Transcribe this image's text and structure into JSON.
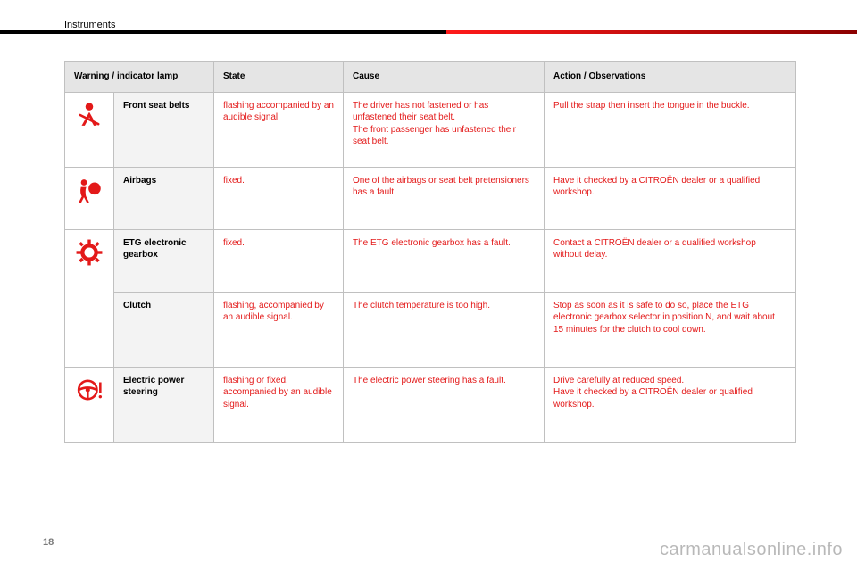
{
  "heading": "Instruments",
  "page_number": "18",
  "watermark": "carmanualsonline.info",
  "colors": {
    "red": "#e31919",
    "header_bg": "#e5e5e5",
    "name_bg": "#f3f3f3",
    "border": "#c0c0c0",
    "bar_red_start": "#ff1a1a",
    "bar_red_end": "#8b0000"
  },
  "headers": {
    "lamp": "Warning / indicator lamp",
    "state": "State",
    "cause": "Cause",
    "action": "Action / Observations"
  },
  "rows": [
    {
      "icon": "seatbelt",
      "name": "Front seat belts",
      "state": "flashing accompanied by an audible signal.",
      "cause": "The driver has not fastened or has unfastened their seat belt.\nThe front passenger has unfastened their seat belt.",
      "action": "Pull the strap then insert the tongue in the buckle."
    },
    {
      "icon": "airbag",
      "name": "Airbags",
      "state": "fixed.",
      "cause": "One of the airbags or seat belt pretensioners has a fault.",
      "action": "Have it checked by a CITROËN dealer or a qualified workshop."
    },
    {
      "icon": "gear",
      "name": "ETG electronic gearbox",
      "state": "fixed.",
      "cause": "The ETG electronic gearbox has a fault.",
      "action": "Contact a CITROËN dealer or a qualified workshop without delay."
    },
    {
      "icon": "",
      "name": "Clutch",
      "state": "flashing, accompanied by an audible signal.",
      "cause": "The clutch temperature is too high.",
      "action": "Stop as soon as it is safe to do so, place the ETG electronic gearbox selector in position N, and wait about 15 minutes for the clutch to cool down."
    },
    {
      "icon": "steering",
      "name": "Electric power steering",
      "state": "flashing or fixed, accompanied by an audible signal.",
      "cause": "The electric power steering has a fault.",
      "action": "Drive carefully at reduced speed.\nHave it checked by a CITROËN dealer or qualified workshop."
    }
  ]
}
